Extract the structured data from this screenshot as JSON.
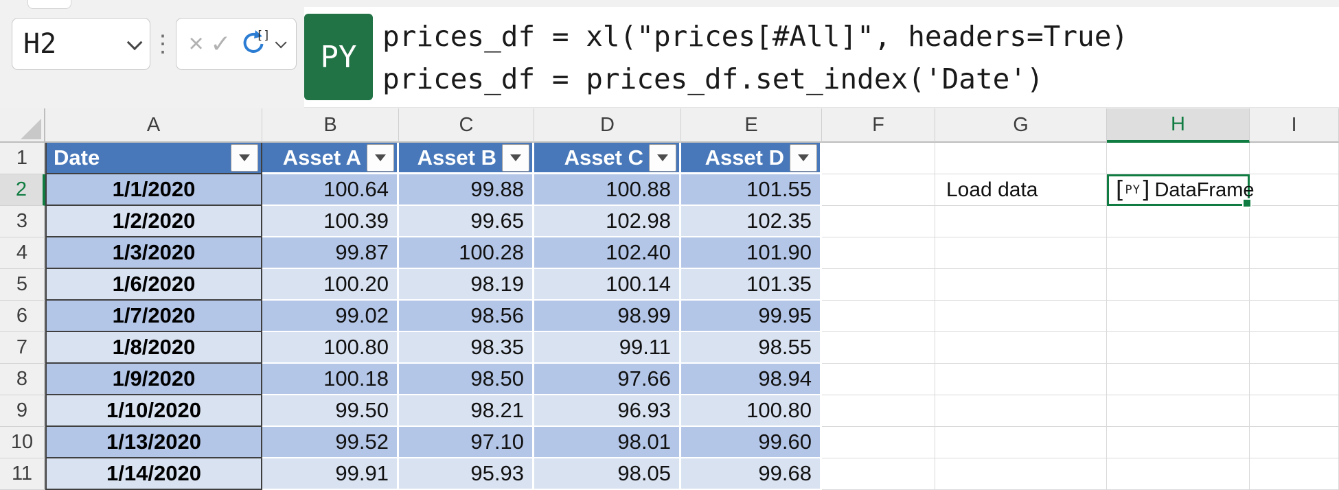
{
  "name_box": {
    "value": "H2"
  },
  "formula_bar": {
    "language_badge": "PY",
    "code_lines": [
      "prices_df = xl(\"prices[#All]\", headers=True)",
      "prices_df = prices_df.set_index('Date')"
    ]
  },
  "icons": {
    "cancel": "×",
    "enter": "✓",
    "more": "⋮"
  },
  "colors": {
    "selection_green": "#107c41",
    "badge_green": "#217346",
    "table_header_blue": "#4878ba",
    "band_dark": "#b4c6e7",
    "band_light": "#d9e2f1"
  },
  "grid": {
    "column_headers": [
      "A",
      "B",
      "C",
      "D",
      "E",
      "F",
      "G",
      "H",
      "I"
    ],
    "selected_column": "H",
    "row_headers": [
      "1",
      "2",
      "3",
      "4",
      "5",
      "6",
      "7",
      "8",
      "9",
      "10",
      "11"
    ],
    "selected_row": "2",
    "table": {
      "headers": [
        "Date",
        "Asset A",
        "Asset B",
        "Asset C",
        "Asset D"
      ],
      "rows": [
        [
          "1/1/2020",
          "100.64",
          "99.88",
          "100.88",
          "101.55"
        ],
        [
          "1/2/2020",
          "100.39",
          "99.65",
          "102.98",
          "102.35"
        ],
        [
          "1/3/2020",
          "99.87",
          "100.28",
          "102.40",
          "101.90"
        ],
        [
          "1/6/2020",
          "100.20",
          "98.19",
          "100.14",
          "101.35"
        ],
        [
          "1/7/2020",
          "99.02",
          "98.56",
          "98.99",
          "99.95"
        ],
        [
          "1/8/2020",
          "100.80",
          "98.35",
          "99.11",
          "98.55"
        ],
        [
          "1/9/2020",
          "100.18",
          "98.50",
          "97.66",
          "98.94"
        ],
        [
          "1/10/2020",
          "99.50",
          "98.21",
          "96.93",
          "100.80"
        ],
        [
          "1/13/2020",
          "99.52",
          "97.10",
          "98.01",
          "99.60"
        ],
        [
          "1/14/2020",
          "99.91",
          "95.93",
          "98.05",
          "99.68"
        ]
      ]
    },
    "side_cells": {
      "load_label": "Load data",
      "load_cell_column": "G",
      "selected_cell_icon": "PY",
      "selected_cell_text": "DataFrame",
      "selected_cell_column": "H"
    }
  }
}
